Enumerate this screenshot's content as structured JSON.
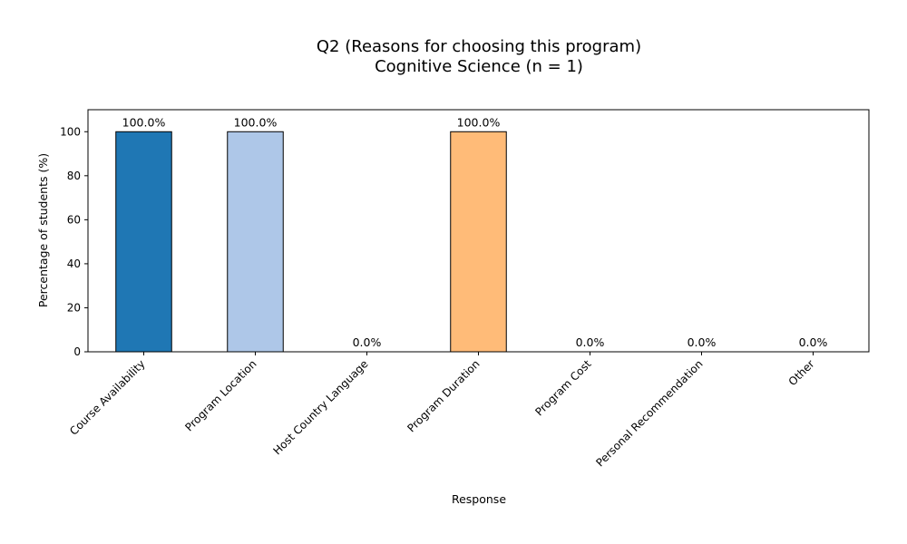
{
  "chart_data": {
    "type": "bar",
    "title": "Q2 (Reasons for choosing this program)",
    "subtitle": "Cognitive Science (n = 1)",
    "xlabel": "Response",
    "ylabel": "Percentage of students (%)",
    "ylim": [
      0,
      110
    ],
    "yticks": [
      0,
      20,
      40,
      60,
      80,
      100
    ],
    "categories": [
      "Course Availability",
      "Program Location",
      "Host Country Language",
      "Program Duration",
      "Program Cost",
      "Personal Recommendation",
      "Other"
    ],
    "values": [
      100,
      100,
      0,
      100,
      0,
      0,
      0
    ],
    "data_labels": [
      "100.0%",
      "100.0%",
      "0.0%",
      "100.0%",
      "0.0%",
      "0.0%",
      "0.0%"
    ],
    "colors": [
      "#1f77b4",
      "#aec7e8",
      "#ff7f0e",
      "#ffbb78",
      "#2ca02c",
      "#98df8a",
      "#d62728"
    ],
    "grid": false,
    "legend": "none"
  }
}
